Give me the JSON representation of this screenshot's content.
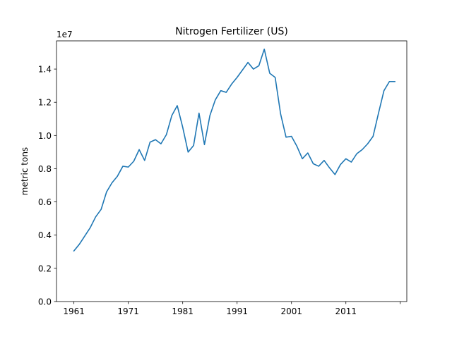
{
  "chart_data": {
    "type": "line",
    "title": "Nitrogen Fertilizer (US)",
    "xlabel": "",
    "ylabel": "metric tons",
    "y_offset_text": "1e7",
    "y_multiplier": 10000000,
    "xlim": [
      1957.8,
      2022.2
    ],
    "ylim": [
      0,
      15700000
    ],
    "grid": false,
    "line_color": "#1f77b4",
    "x_ticks": [
      1961,
      1971,
      1981,
      1991,
      2001,
      2011,
      2021
    ],
    "x_tick_labels": [
      "1961",
      "1971",
      "1981",
      "1991",
      "2001",
      "2011",
      ""
    ],
    "y_ticks": [
      0,
      2000000,
      4000000,
      6000000,
      8000000,
      10000000,
      12000000,
      14000000
    ],
    "y_tick_labels": [
      "0.0",
      "0.2",
      "0.4",
      "0.6",
      "0.8",
      "1.0",
      "1.2",
      "1.4"
    ],
    "x": [
      1961,
      1962,
      1963,
      1964,
      1965,
      1966,
      1967,
      1968,
      1969,
      1970,
      1971,
      1972,
      1973,
      1974,
      1975,
      1976,
      1977,
      1978,
      1979,
      1980,
      1981,
      1982,
      1983,
      1984,
      1985,
      1986,
      1987,
      1988,
      1989,
      1990,
      1991,
      1992,
      1993,
      1994,
      1995,
      1996,
      1997,
      1998,
      1999,
      2000,
      2001,
      2002,
      2003,
      2004,
      2005,
      2006,
      2007,
      2008,
      2009,
      2010,
      2011,
      2012,
      2013,
      2014,
      2015,
      2016,
      2017,
      2018,
      2019,
      2020
    ],
    "y": [
      3050000,
      3450000,
      3950000,
      4450000,
      5100000,
      5550000,
      6600000,
      7150000,
      7550000,
      8150000,
      8100000,
      8450000,
      9150000,
      8500000,
      9600000,
      9750000,
      9500000,
      10050000,
      11200000,
      11800000,
      10500000,
      9000000,
      9400000,
      11350000,
      9450000,
      11200000,
      12150000,
      12700000,
      12600000,
      13100000,
      13500000,
      13950000,
      14400000,
      14000000,
      14200000,
      15200000,
      13750000,
      13500000,
      11300000,
      9900000,
      9950000,
      9350000,
      8600000,
      8950000,
      8300000,
      8150000,
      8500000,
      8050000,
      7650000,
      8250000,
      8600000,
      8400000,
      8900000,
      9150000,
      9500000,
      9950000,
      11350000,
      12700000,
      13250000,
      13250000
    ]
  }
}
